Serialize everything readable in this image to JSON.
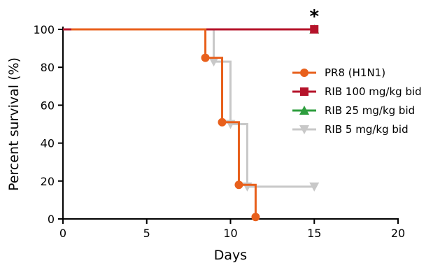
{
  "chart_data": {
    "type": "line",
    "step": true,
    "title": "",
    "xlabel": "Days",
    "ylabel": "Percent survival (%)",
    "xlim": [
      0,
      20
    ],
    "ylim": [
      0,
      100
    ],
    "xticks": [
      0,
      5,
      10,
      15,
      20
    ],
    "yticks": [
      0,
      20,
      40,
      60,
      80,
      100
    ],
    "grid": false,
    "legend_position": "right",
    "annotation": {
      "text": "*",
      "x": 15
    },
    "series": [
      {
        "name": "PR8 (H1N1)",
        "color": "#e8601c",
        "marker": "circle",
        "x": [
          0.5,
          8.5,
          9.5,
          10.5,
          11.5
        ],
        "y": [
          100,
          85,
          51,
          18,
          1
        ],
        "points": [
          {
            "x": 8.5,
            "y": 85
          },
          {
            "x": 9.5,
            "y": 51
          },
          {
            "x": 10.5,
            "y": 18
          },
          {
            "x": 11.5,
            "y": 1
          }
        ]
      },
      {
        "name": "RIB 100 mg/kg bid",
        "color": "#b5132a",
        "marker": "square",
        "x": [
          0,
          15
        ],
        "y": [
          100,
          100
        ],
        "points": [
          {
            "x": 15,
            "y": 100
          }
        ]
      },
      {
        "name": "RIB 25 mg/kg bid",
        "color": "#2e9e3e",
        "marker": "triangle-up",
        "x": [
          0,
          15
        ],
        "y": [
          100,
          100
        ],
        "points": [
          {
            "x": 15,
            "y": 100
          }
        ]
      },
      {
        "name": "RIB 5 mg/kg bid",
        "color": "#c8c8c8",
        "marker": "triangle-down",
        "x": [
          0,
          9,
          10,
          11,
          15
        ],
        "y": [
          100,
          83,
          50,
          17,
          17
        ],
        "points": [
          {
            "x": 9,
            "y": 83
          },
          {
            "x": 10,
            "y": 50
          },
          {
            "x": 11,
            "y": 17
          },
          {
            "x": 15,
            "y": 17
          }
        ]
      }
    ]
  }
}
